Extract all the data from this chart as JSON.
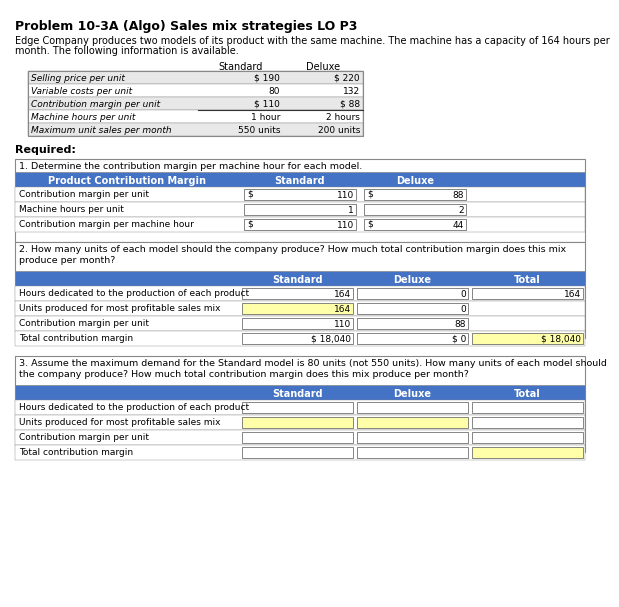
{
  "title": "Problem 10-3A (Algo) Sales mix strategies LO P3",
  "intro1": "Edge Company produces two models of its product with the same machine. The machine has a capacity of 164 hours per",
  "intro2": "month. The following information is available.",
  "info_rows": [
    [
      "Selling price per unit",
      "$ 190",
      "$ 220"
    ],
    [
      "Variable costs per unit",
      "80",
      "132"
    ],
    [
      "Contribution margin per unit",
      "$ 110",
      "$ 88"
    ],
    [
      "Machine hours per unit",
      "1 hour",
      "2 hours"
    ],
    [
      "Maximum unit sales per month",
      "550 units",
      "200 units"
    ]
  ],
  "required": "Required:",
  "s1_title": "1. Determine the contribution margin per machine hour for each model.",
  "s1_col0": "Product Contribution Margin",
  "s1_col1": "Standard",
  "s1_col2": "Deluxe",
  "s1_rows": [
    [
      "Contribution margin per unit",
      "$",
      "110",
      "$",
      "88"
    ],
    [
      "Machine hours per unit",
      "",
      "1",
      "",
      "2"
    ],
    [
      "Contribution margin per machine hour",
      "$",
      "110",
      "$",
      "44"
    ]
  ],
  "s2_title1": "2. How many units of each model should the company produce? How much total contribution margin does this mix",
  "s2_title2": "produce per month?",
  "s2_rows": [
    [
      "Hours dedicated to the production of each product",
      "164",
      "0",
      "164",
      false,
      false,
      false
    ],
    [
      "Units produced for most profitable sales mix",
      "164",
      "0",
      "",
      true,
      false,
      false
    ],
    [
      "Contribution margin per unit",
      "110",
      "88",
      "",
      false,
      false,
      false
    ],
    [
      "Total contribution margin",
      "$ 18,040",
      "$ 0",
      "$ 18,040",
      false,
      false,
      true
    ]
  ],
  "s3_title1": "3. Assume the maximum demand for the Standard model is 80 units (not 550 units). How many units of each model should",
  "s3_title2": "the company produce? How much total contribution margin does this mix produce per month?",
  "s3_rows": [
    [
      "Hours dedicated to the production of each product",
      "",
      "",
      "",
      false,
      false,
      false
    ],
    [
      "Units produced for most profitable sales mix",
      "",
      "",
      "",
      true,
      true,
      false
    ],
    [
      "Contribution margin per unit",
      "",
      "",
      "",
      false,
      false,
      false
    ],
    [
      "Total contribution margin",
      "",
      "",
      "",
      false,
      false,
      true
    ]
  ],
  "header_blue": "#4472C4",
  "yellow": "#FFFFAA",
  "light_gray": "#E8E8E8",
  "white": "#FFFFFF",
  "black": "#000000"
}
